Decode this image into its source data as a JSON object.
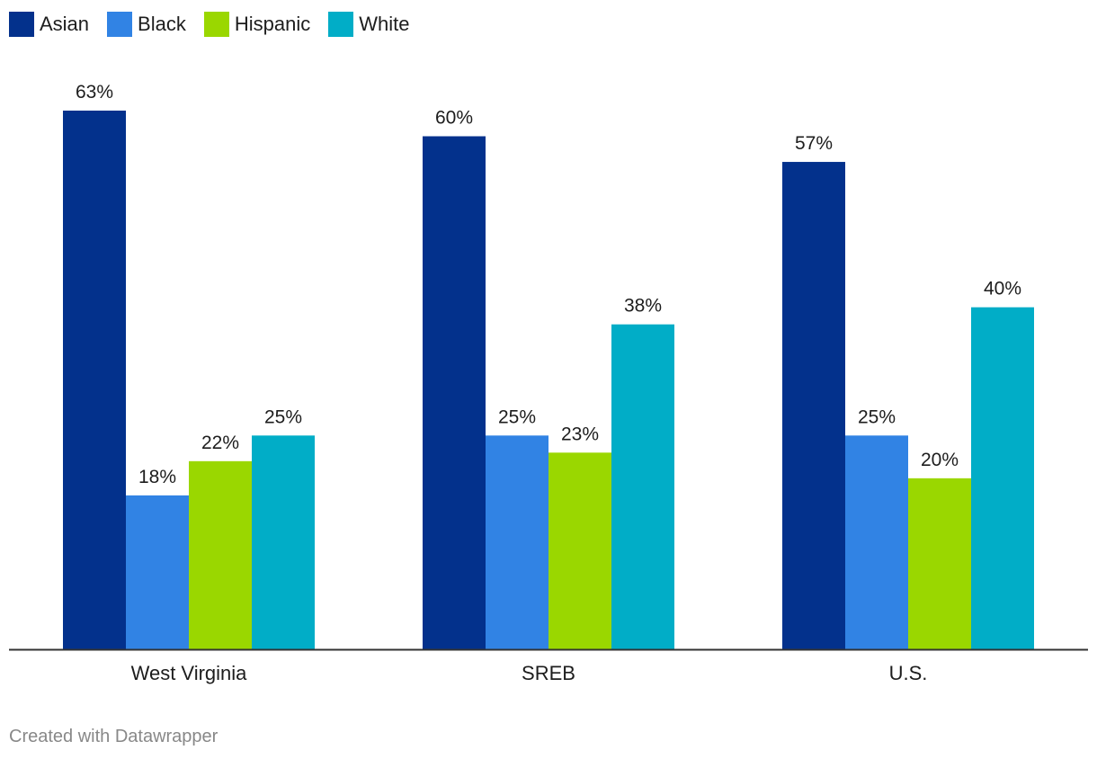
{
  "legend": [
    {
      "label": "Asian",
      "color": "#03318c"
    },
    {
      "label": "Black",
      "color": "#3183e4"
    },
    {
      "label": "Hispanic",
      "color": "#9ad700"
    },
    {
      "label": "White",
      "color": "#01adc7"
    }
  ],
  "chart_data": {
    "type": "bar",
    "categories": [
      "West Virginia",
      "SREB",
      "U.S."
    ],
    "series": [
      {
        "name": "Asian",
        "values": [
          63,
          60,
          57
        ],
        "color": "#03318c"
      },
      {
        "name": "Black",
        "values": [
          18,
          25,
          25
        ],
        "color": "#3183e4"
      },
      {
        "name": "Hispanic",
        "values": [
          22,
          23,
          20
        ],
        "color": "#9ad700"
      },
      {
        "name": "White",
        "values": [
          25,
          38,
          40
        ],
        "color": "#01adc7"
      }
    ],
    "value_suffix": "%",
    "ylim": [
      0,
      63
    ],
    "grid": false,
    "legend_position": "top-left"
  },
  "footer": {
    "credit": "Created with Datawrapper"
  }
}
